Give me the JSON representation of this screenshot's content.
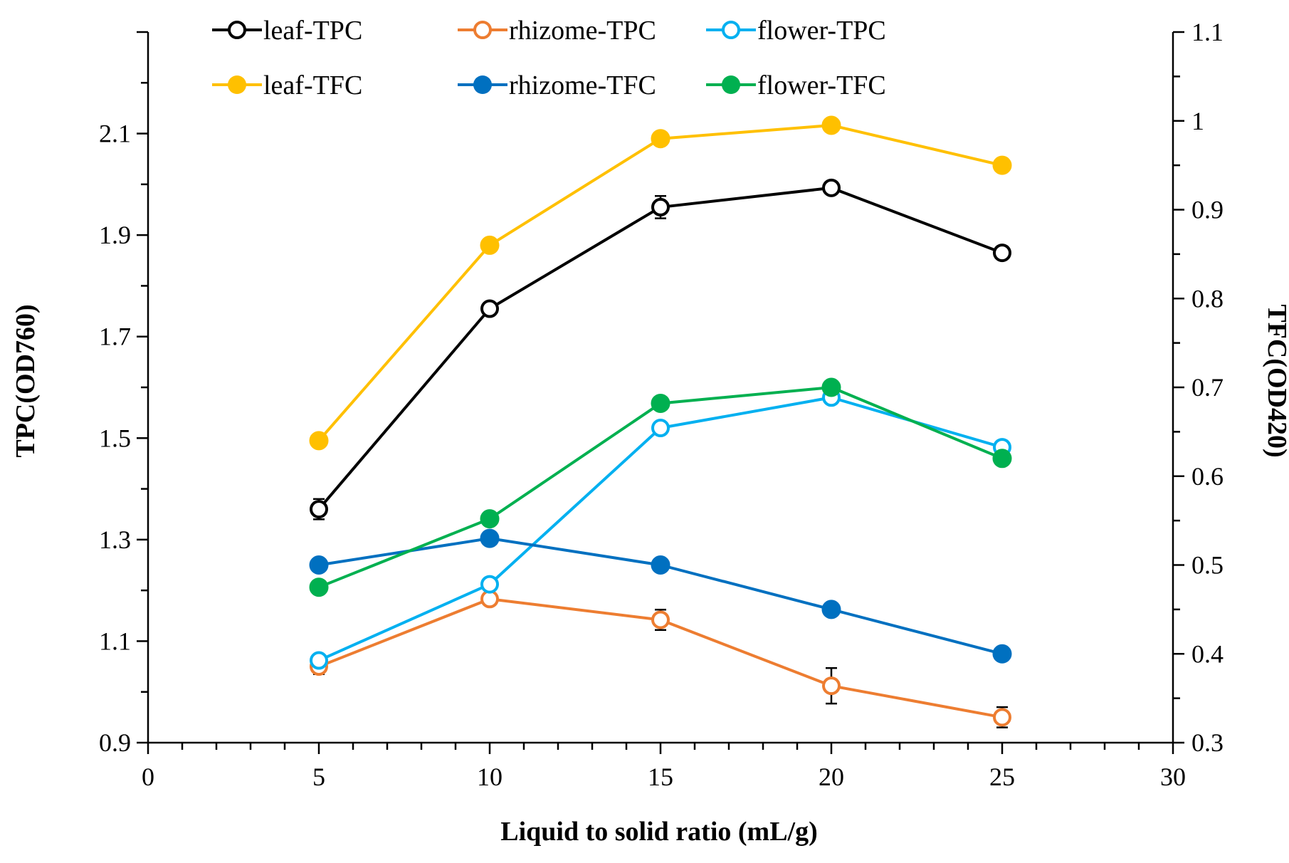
{
  "chart_data": {
    "type": "line",
    "title": "",
    "xlabel": "Liquid to solid ratio (mL/g)",
    "ylabel_left": "TPC(OD760)",
    "ylabel_right": "TFC(OD420)",
    "xlim": [
      0,
      30
    ],
    "ylim_left": [
      0.9,
      2.3
    ],
    "ylim_right": [
      0.3,
      1.1
    ],
    "x_ticks": [
      "0",
      "5",
      "10",
      "15",
      "20",
      "25",
      "30"
    ],
    "y_left_ticks": [
      "0.9",
      "1.1",
      "1.3",
      "1.5",
      "1.7",
      "1.9",
      "2.1"
    ],
    "y_right_ticks": [
      "0.3",
      "0.4",
      "0.5",
      "0.6",
      "0.7",
      "0.8",
      "0.9",
      "1",
      "1.1"
    ],
    "grid": false,
    "legend_position": "top",
    "x": [
      5,
      10,
      15,
      20,
      25
    ],
    "series": [
      {
        "name": "leaf-TPC",
        "axis": "left",
        "marker": "open",
        "color": "#000000",
        "values": [
          1.36,
          1.755,
          1.955,
          1.993,
          1.865
        ],
        "errors": [
          0.02,
          0.01,
          0.022,
          0.01,
          0.01
        ]
      },
      {
        "name": "rhizome-TPC",
        "axis": "left",
        "marker": "open",
        "color": "#ED7D31",
        "values": [
          1.05,
          1.183,
          1.142,
          1.012,
          0.95
        ],
        "errors": [
          0.015,
          0.01,
          0.02,
          0.035,
          0.02
        ]
      },
      {
        "name": "flower-TPC",
        "axis": "left",
        "marker": "open",
        "color": "#00B0F0",
        "values": [
          1.062,
          1.212,
          1.52,
          1.58,
          1.482
        ],
        "errors": [
          0.005,
          0.005,
          0.005,
          0.005,
          0.005
        ]
      },
      {
        "name": "leaf-TFC",
        "axis": "right",
        "marker": "filled",
        "color": "#FFC000",
        "values": [
          0.64,
          0.86,
          0.98,
          0.995,
          0.95
        ],
        "errors": []
      },
      {
        "name": "rhizome-TFC",
        "axis": "right",
        "marker": "filled",
        "color": "#0070C0",
        "values": [
          0.5,
          0.53,
          0.5,
          0.45,
          0.4
        ],
        "errors": []
      },
      {
        "name": "flower-TFC",
        "axis": "right",
        "marker": "filled",
        "color": "#00B050",
        "values": [
          0.475,
          0.552,
          0.682,
          0.7,
          0.62
        ],
        "errors": []
      }
    ]
  }
}
